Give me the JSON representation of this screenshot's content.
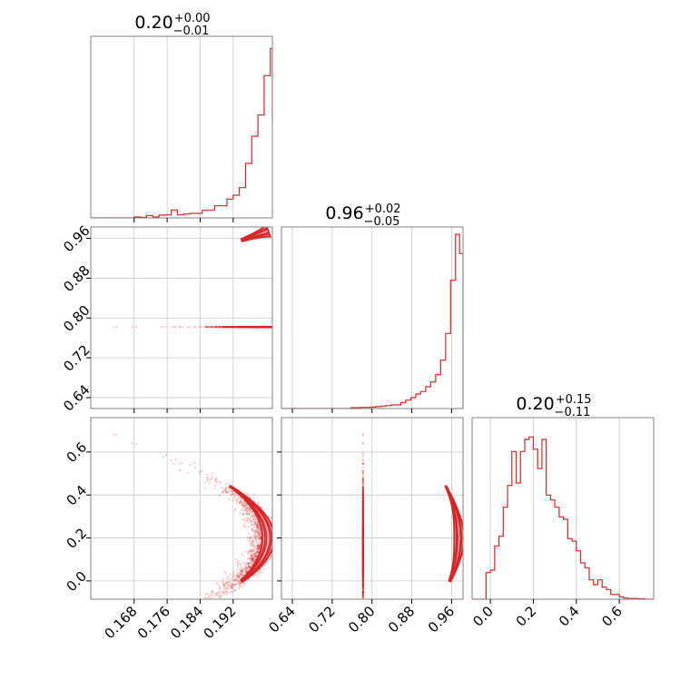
{
  "chart_data": {
    "type": "corner",
    "line_color": "#d62728",
    "fill_color": "#f4b6b8",
    "grid": true,
    "parameters": [
      {
        "title": {
          "median": "0.20",
          "plus": "+0.00",
          "minus": "−0.01"
        },
        "range": [
          0.1575,
          0.2015
        ],
        "ticks": [
          {
            "value": 0.168,
            "label": "0.168"
          },
          {
            "value": 0.176,
            "label": "0.176"
          },
          {
            "value": 0.184,
            "label": "0.184"
          },
          {
            "value": 0.192,
            "label": "0.192"
          }
        ]
      },
      {
        "title": {
          "median": "0.96",
          "plus": "+0.02",
          "minus": "−0.05"
        },
        "range": [
          0.618,
          0.983
        ],
        "ticks": [
          {
            "value": 0.64,
            "label": "0.64"
          },
          {
            "value": 0.72,
            "label": "0.72"
          },
          {
            "value": 0.8,
            "label": "0.80"
          },
          {
            "value": 0.88,
            "label": "0.88"
          },
          {
            "value": 0.96,
            "label": "0.96"
          }
        ]
      },
      {
        "title": {
          "median": "0.20",
          "plus": "+0.15",
          "minus": "−0.11"
        },
        "range": [
          -0.085,
          0.76
        ],
        "ticks": [
          {
            "value": 0.0,
            "label": "0.0"
          },
          {
            "value": 0.2,
            "label": "0.2"
          },
          {
            "value": 0.4,
            "label": "0.4"
          },
          {
            "value": 0.6,
            "label": "0.6"
          }
        ]
      }
    ],
    "histograms": [
      {
        "param": 0,
        "edges": [
          0.1575,
          0.159,
          0.1605,
          0.162,
          0.1635,
          0.165,
          0.1665,
          0.168,
          0.1695,
          0.171,
          0.1725,
          0.174,
          0.1755,
          0.177,
          0.1785,
          0.18,
          0.1815,
          0.183,
          0.1845,
          0.186,
          0.1875,
          0.189,
          0.1905,
          0.192,
          0.1935,
          0.195,
          0.1965,
          0.198,
          0.1995,
          0.201,
          0.2015
        ],
        "counts": [
          0,
          0,
          0,
          0,
          0,
          0,
          0,
          0.3,
          0.2,
          0.8,
          0.3,
          0.9,
          1.0,
          2.6,
          1.0,
          1.3,
          1.5,
          1.5,
          2.5,
          2.6,
          4.0,
          4.0,
          6.2,
          7.5,
          10,
          18,
          27,
          34,
          47,
          56,
          32
        ],
        "ylim": [
          0,
          60
        ]
      },
      {
        "param": 1,
        "edges": [
          0.618,
          0.628,
          0.638,
          0.648,
          0.658,
          0.668,
          0.678,
          0.688,
          0.698,
          0.708,
          0.718,
          0.728,
          0.738,
          0.748,
          0.758,
          0.768,
          0.778,
          0.788,
          0.798,
          0.808,
          0.818,
          0.828,
          0.838,
          0.848,
          0.858,
          0.868,
          0.878,
          0.888,
          0.898,
          0.908,
          0.918,
          0.928,
          0.938,
          0.948,
          0.958,
          0.968,
          0.976,
          0.983
        ],
        "counts": [
          0,
          0,
          0,
          0,
          0,
          0,
          0,
          0,
          0,
          0,
          0,
          0,
          0,
          0,
          0.4,
          0.4,
          0.5,
          0.5,
          0.6,
          0.8,
          1.0,
          1.2,
          1.5,
          1.5,
          2.5,
          3.5,
          4.5,
          6,
          7,
          9,
          11,
          14,
          20,
          31,
          53,
          72,
          64
        ],
        "ylim": [
          0,
          75
        ]
      },
      {
        "param": 2,
        "edges": [
          -0.085,
          -0.06,
          -0.04,
          -0.02,
          0.0,
          0.02,
          0.04,
          0.06,
          0.08,
          0.1,
          0.12,
          0.14,
          0.16,
          0.18,
          0.2,
          0.22,
          0.24,
          0.26,
          0.28,
          0.3,
          0.32,
          0.34,
          0.36,
          0.38,
          0.4,
          0.42,
          0.44,
          0.46,
          0.48,
          0.5,
          0.52,
          0.54,
          0.56,
          0.58,
          0.6,
          0.62,
          0.64,
          0.66,
          0.68,
          0.7,
          0.72,
          0.74,
          0.76
        ],
        "counts": [
          0,
          0,
          0,
          11,
          12,
          22,
          26,
          38,
          47,
          61,
          48,
          61,
          66,
          67,
          62,
          54,
          66,
          43,
          41,
          38,
          34,
          33,
          25,
          24,
          20,
          15,
          13,
          8,
          6,
          8,
          5,
          4,
          2,
          2,
          1,
          0.5,
          0.3,
          0.3,
          0.2,
          0.2,
          0,
          0
        ],
        "ylim": [
          0,
          75
        ]
      }
    ],
    "scatter_panels": [
      {
        "x_param": 0,
        "y_param": 1
      },
      {
        "x_param": 0,
        "y_param": 2
      },
      {
        "x_param": 1,
        "y_param": 2
      }
    ]
  }
}
